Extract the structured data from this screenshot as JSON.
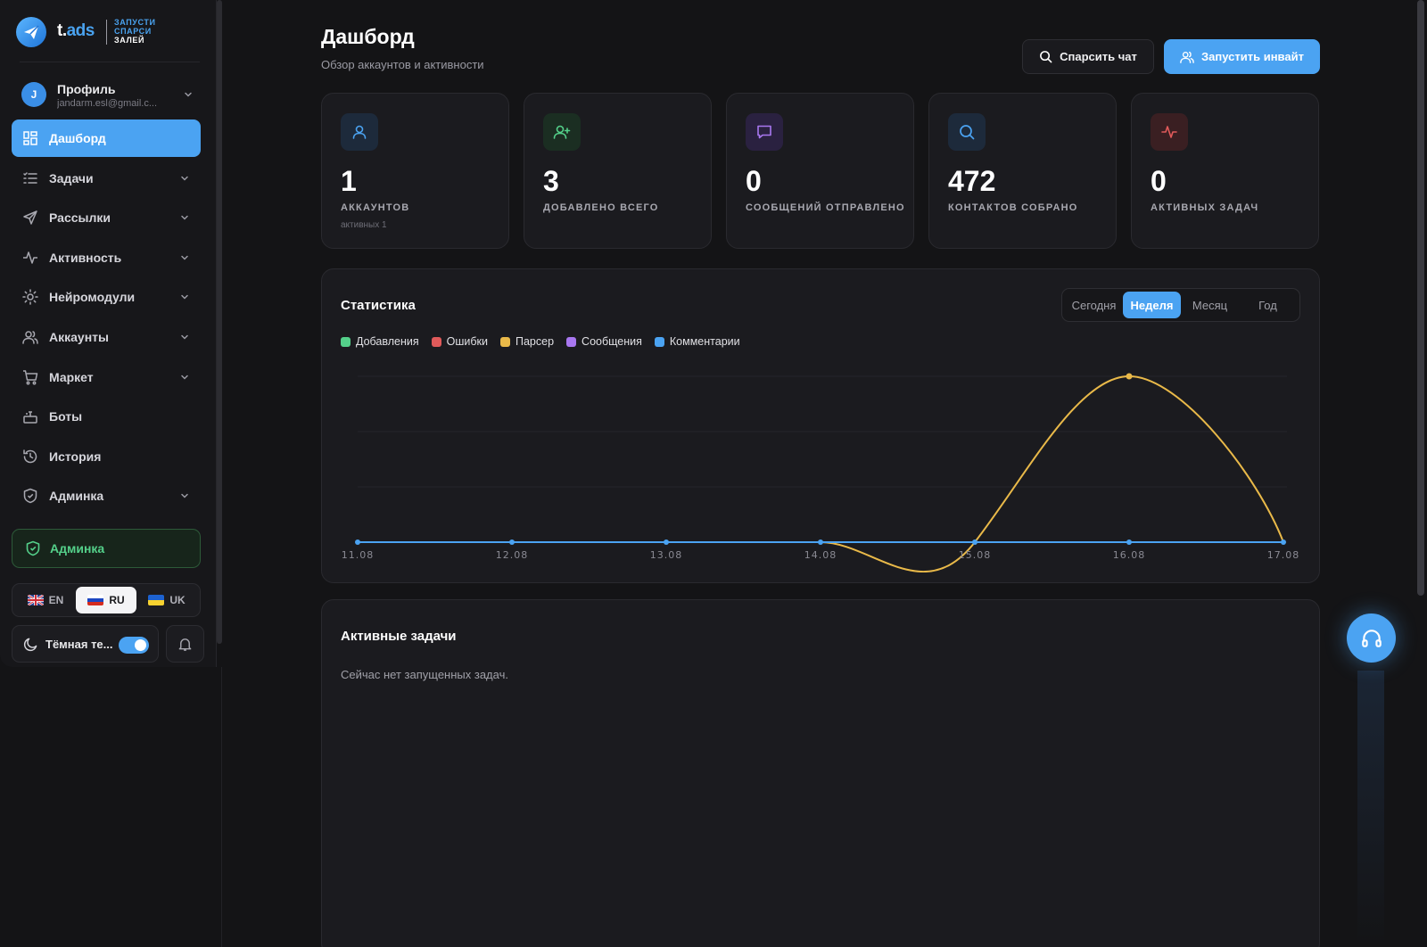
{
  "brand": {
    "logo_text_prefix": "t.",
    "logo_text_accent": "ads",
    "tagline": [
      "ЗАПУСТИ",
      "СПАРСИ",
      "ЗАЛЕЙ"
    ]
  },
  "profile": {
    "initial": "J",
    "name": "Профиль",
    "email": "jandarm.esl@gmail.c..."
  },
  "sidebar": {
    "items": [
      {
        "label": "Дашборд",
        "icon": "dashboard-icon",
        "active": true,
        "chevron": false
      },
      {
        "label": "Задачи",
        "icon": "tasks-icon",
        "active": false,
        "chevron": true
      },
      {
        "label": "Рассылки",
        "icon": "send-icon",
        "active": false,
        "chevron": true
      },
      {
        "label": "Активность",
        "icon": "activity-icon",
        "active": false,
        "chevron": true
      },
      {
        "label": "Нейромодули",
        "icon": "neuro-icon",
        "active": false,
        "chevron": true
      },
      {
        "label": "Аккаунты",
        "icon": "accounts-icon",
        "active": false,
        "chevron": true
      },
      {
        "label": "Маркет",
        "icon": "cart-icon",
        "active": false,
        "chevron": true
      },
      {
        "label": "Боты",
        "icon": "bot-icon",
        "active": false,
        "chevron": false
      },
      {
        "label": "История",
        "icon": "history-icon",
        "active": false,
        "chevron": false
      },
      {
        "label": "Админка",
        "icon": "shield-icon",
        "active": false,
        "chevron": true
      }
    ],
    "admin_button": "Админка",
    "languages": [
      {
        "code": "EN",
        "active": false
      },
      {
        "code": "RU",
        "active": true
      },
      {
        "code": "UK",
        "active": false
      }
    ],
    "theme_label": "Тёмная те...",
    "theme_enabled": true
  },
  "header": {
    "title": "Дашборд",
    "subtitle": "Обзор аккаунтов и активности",
    "parse_button": "Спарсить чат",
    "invite_button": "Запустить инвайт"
  },
  "stats": [
    {
      "value": "1",
      "label": "АККАУНТОВ",
      "sub": "активных 1",
      "icon": "user-icon",
      "color": "#4ba3f2"
    },
    {
      "value": "3",
      "label": "ДОБАВЛЕНО ВСЕГО",
      "sub": "",
      "icon": "user-plus-icon",
      "color": "#54d08a"
    },
    {
      "value": "0",
      "label": "СООБЩЕНИЙ ОТПРАВЛЕНО",
      "sub": "",
      "icon": "message-icon",
      "color": "#a877f0"
    },
    {
      "value": "472",
      "label": "КОНТАКТОВ СОБРАНО",
      "sub": "",
      "icon": "search-icon",
      "color": "#4ba3f2"
    },
    {
      "value": "0",
      "label": "АКТИВНЫХ ЗАДАЧ",
      "sub": "",
      "icon": "pulse-icon",
      "color": "#e05a5a"
    }
  ],
  "statistics": {
    "title": "Статистика",
    "ranges": [
      "Сегодня",
      "Неделя",
      "Месяц",
      "Год"
    ],
    "active_range": "Неделя"
  },
  "chart_data": {
    "type": "line",
    "x": [
      "11.08",
      "12.08",
      "13.08",
      "14.08",
      "15.08",
      "16.08",
      "17.08"
    ],
    "series": [
      {
        "name": "Добавления",
        "color": "#54d08a",
        "values": [
          0,
          0,
          0,
          0,
          0,
          0,
          0
        ]
      },
      {
        "name": "Ошибки",
        "color": "#e05a5a",
        "values": [
          0,
          0,
          0,
          0,
          0,
          0,
          0
        ]
      },
      {
        "name": "Парсер",
        "color": "#e9b949",
        "values": [
          0,
          0,
          0,
          0,
          0,
          472,
          0
        ]
      },
      {
        "name": "Сообщения",
        "color": "#a877f0",
        "values": [
          0,
          0,
          0,
          0,
          0,
          0,
          0
        ]
      },
      {
        "name": "Комментарии",
        "color": "#4ba3f2",
        "values": [
          0,
          0,
          0,
          0,
          0,
          0,
          0
        ]
      }
    ],
    "ylim": [
      0,
      472
    ],
    "grid": true,
    "legend": "top-left",
    "smooth": true
  },
  "tasks": {
    "title": "Активные задачи",
    "empty_text": "Сейчас нет запущенных задач."
  }
}
